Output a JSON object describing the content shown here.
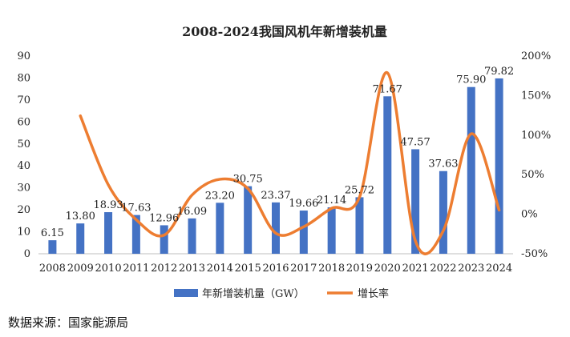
{
  "chart_data": {
    "type": "bar",
    "title": "2008-2024我国风机年新增装机量",
    "categories": [
      "2008",
      "2009",
      "2010",
      "2011",
      "2012",
      "2013",
      "2014",
      "2015",
      "2016",
      "2017",
      "2018",
      "2019",
      "2020",
      "2021",
      "2022",
      "2023",
      "2024"
    ],
    "series": [
      {
        "name": "年新增装机量（GW）",
        "type": "bar",
        "axis": "left",
        "color": "#4472C4",
        "values": [
          6.15,
          13.8,
          18.93,
          17.63,
          12.96,
          16.09,
          23.2,
          30.75,
          23.37,
          19.66,
          21.14,
          25.72,
          71.67,
          47.57,
          37.63,
          75.9,
          79.82
        ],
        "labels": [
          "6.15",
          "13.80",
          "18.93",
          "17.63",
          "12.96",
          "16.09",
          "23.20",
          "30.75",
          "23.37",
          "19.66",
          "21.14",
          "25.72",
          "71.67",
          "47.57",
          "37.63",
          "75.90",
          "79.82"
        ]
      },
      {
        "name": "增长率",
        "type": "line",
        "axis": "right",
        "color": "#ED7D31",
        "values": [
          null,
          1.244,
          0.372,
          -0.069,
          -0.265,
          0.242,
          0.442,
          0.325,
          -0.24,
          -0.159,
          0.075,
          0.217,
          1.787,
          -0.336,
          -0.209,
          1.017,
          0.052
        ]
      }
    ],
    "ylim": [
      0,
      90
    ],
    "yticks": [
      "0",
      "10",
      "20",
      "30",
      "40",
      "50",
      "60",
      "70",
      "80",
      "90"
    ],
    "y2lim": [
      -0.5,
      2.0
    ],
    "y2ticks": [
      "-50%",
      "0%",
      "50%",
      "100%",
      "150%",
      "200%"
    ],
    "legend": {
      "position": "bottom",
      "items": [
        "年新增装机量（GW）",
        "增长率"
      ]
    },
    "grid": false
  },
  "source_note": "数据来源：国家能源局"
}
